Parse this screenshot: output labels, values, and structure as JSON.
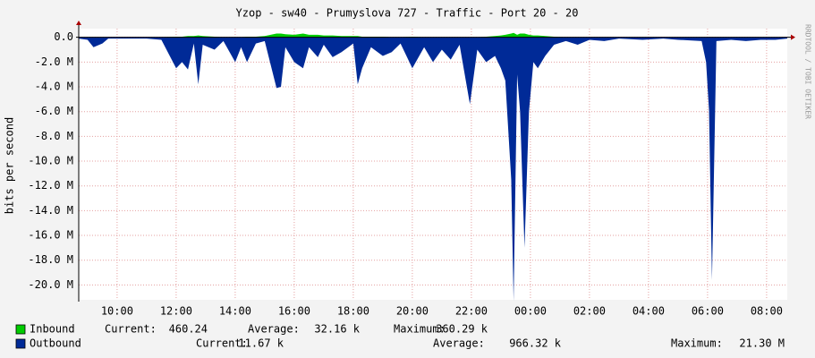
{
  "chart_data": {
    "type": "area",
    "title": "Yzop - sw40 - Prumyslova 727 - Traffic - Port 20 - 20",
    "ylabel": "bits per second",
    "watermark": "RRDTOOL / TOBI OETIKER",
    "grid": true,
    "xlim": [
      8.7,
      32.7
    ],
    "xticks": [
      {
        "value": 10,
        "label": "10:00"
      },
      {
        "value": 12,
        "label": "12:00"
      },
      {
        "value": 14,
        "label": "14:00"
      },
      {
        "value": 16,
        "label": "16:00"
      },
      {
        "value": 18,
        "label": "18:00"
      },
      {
        "value": 20,
        "label": "20:00"
      },
      {
        "value": 22,
        "label": "22:00"
      },
      {
        "value": 24,
        "label": "00:00"
      },
      {
        "value": 26,
        "label": "02:00"
      },
      {
        "value": 28,
        "label": "04:00"
      },
      {
        "value": 30,
        "label": "06:00"
      },
      {
        "value": 32,
        "label": "08:00"
      }
    ],
    "ylim": [
      -21200000,
      700000
    ],
    "yticks": [
      {
        "value": 0,
        "label": "0.0"
      },
      {
        "value": -2000000,
        "label": "-2.0 M"
      },
      {
        "value": -4000000,
        "label": "-4.0 M"
      },
      {
        "value": -6000000,
        "label": "-6.0 M"
      },
      {
        "value": -8000000,
        "label": "-8.0 M"
      },
      {
        "value": -10000000,
        "label": "-10.0 M"
      },
      {
        "value": -12000000,
        "label": "-12.0 M"
      },
      {
        "value": -14000000,
        "label": "-14.0 M"
      },
      {
        "value": -16000000,
        "label": "-16.0 M"
      },
      {
        "value": -18000000,
        "label": "-18.0 M"
      },
      {
        "value": -20000000,
        "label": "-20.0 M"
      }
    ],
    "x": [
      8.7,
      9.0,
      9.2,
      9.5,
      9.7,
      10.5,
      11.0,
      11.5,
      12.0,
      12.2,
      12.4,
      12.6,
      12.75,
      12.9,
      13.3,
      13.6,
      14.0,
      14.2,
      14.4,
      14.7,
      15.0,
      15.4,
      15.55,
      15.7,
      16.0,
      16.3,
      16.5,
      16.8,
      17.0,
      17.3,
      17.6,
      18.0,
      18.15,
      18.3,
      18.6,
      19.0,
      19.3,
      19.6,
      20.0,
      20.4,
      20.7,
      21.0,
      21.3,
      21.6,
      21.95,
      22.2,
      22.5,
      22.8,
      23.0,
      23.15,
      23.35,
      23.43,
      23.55,
      23.65,
      23.8,
      23.95,
      24.1,
      24.25,
      24.5,
      24.8,
      25.2,
      25.6,
      26.0,
      26.5,
      27.0,
      27.8,
      28.5,
      29.0,
      29.8,
      29.95,
      30.05,
      30.15,
      30.3,
      30.8,
      31.3,
      31.8,
      32.3,
      32.7
    ],
    "series": [
      {
        "name": "Inbound",
        "color": "#00cc00",
        "stats": [
          [
            "Current:",
            "460.24"
          ],
          [
            "Average:",
            "32.16 k"
          ],
          [
            "Maximum:",
            "360.29 k"
          ]
        ],
        "values": [
          0,
          0,
          0,
          0,
          0,
          0,
          0,
          0,
          50000,
          50000,
          100000,
          100000,
          150000,
          100000,
          50000,
          0,
          0,
          0,
          50000,
          50000,
          100000,
          300000,
          300000,
          250000,
          200000,
          300000,
          200000,
          200000,
          150000,
          150000,
          100000,
          100000,
          100000,
          50000,
          50000,
          50000,
          0,
          0,
          50000,
          0,
          0,
          0,
          0,
          0,
          0,
          0,
          50000,
          100000,
          150000,
          200000,
          300000,
          360000,
          200000,
          300000,
          300000,
          200000,
          150000,
          150000,
          100000,
          50000,
          0,
          0,
          0,
          0,
          0,
          0,
          0,
          0,
          0,
          0,
          0,
          0,
          0,
          0,
          0,
          0,
          0,
          0
        ]
      },
      {
        "name": "Outbound",
        "color": "#002a97",
        "stats": [
          [
            "Current:",
            "11.67 k"
          ],
          [
            "Average:",
            "966.32 k"
          ],
          [
            "Maximum:",
            "21.30 M"
          ]
        ],
        "values": [
          -100000,
          -200000,
          -800000,
          -500000,
          -100000,
          -100000,
          -100000,
          -200000,
          -2500000,
          -2000000,
          -2600000,
          -500000,
          -3800000,
          -600000,
          -1000000,
          -300000,
          -2000000,
          -800000,
          -2000000,
          -500000,
          -300000,
          -4100000,
          -4000000,
          -800000,
          -2000000,
          -2500000,
          -800000,
          -1600000,
          -600000,
          -1600000,
          -1200000,
          -500000,
          -3800000,
          -2500000,
          -800000,
          -1500000,
          -1200000,
          -500000,
          -2500000,
          -800000,
          -2000000,
          -1000000,
          -1800000,
          -600000,
          -5400000,
          -1000000,
          -2000000,
          -1500000,
          -2500000,
          -3500000,
          -11500000,
          -21300000,
          -3000000,
          -6000000,
          -17000000,
          -6000000,
          -2000000,
          -2500000,
          -1500000,
          -600000,
          -300000,
          -600000,
          -200000,
          -300000,
          -100000,
          -200000,
          -100000,
          -200000,
          -300000,
          -2000000,
          -5900000,
          -19600000,
          -300000,
          -200000,
          -300000,
          -200000,
          -200000,
          -100000
        ]
      }
    ]
  }
}
